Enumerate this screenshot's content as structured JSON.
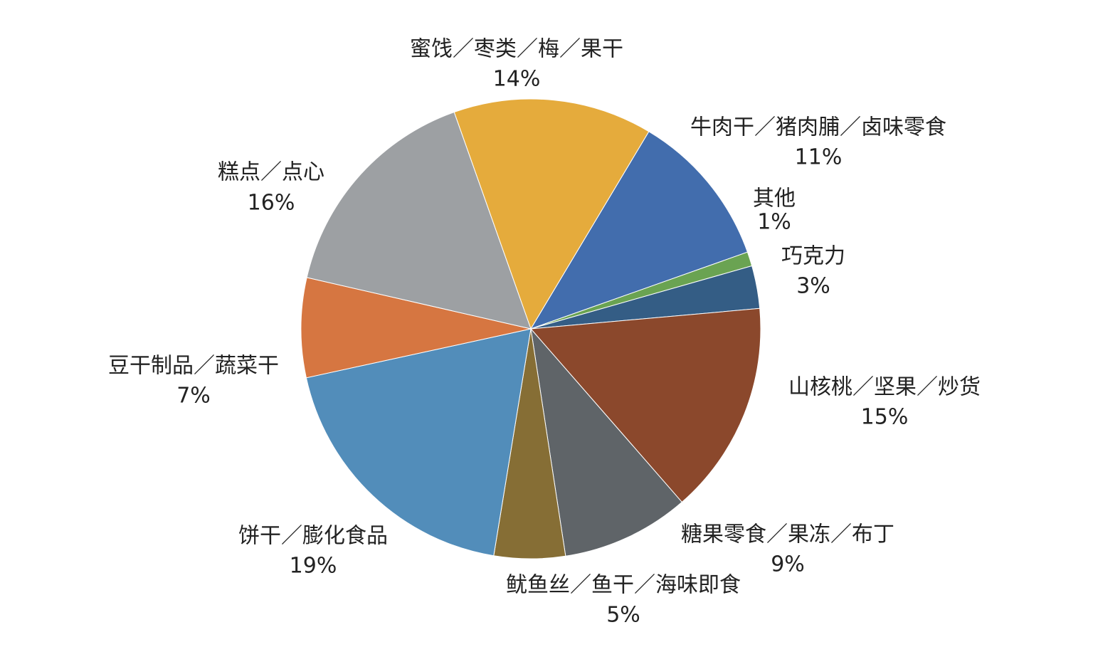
{
  "chart_data": {
    "type": "pie",
    "title": "",
    "start_angle_deg": 109.5,
    "direction": "clockwise",
    "slices": [
      {
        "label": "蜜饯／枣类／梅／果干",
        "value": 14,
        "value_label": "14%",
        "color": "#E5AB3C"
      },
      {
        "label": "牛肉干／猪肉脯／卤味零食",
        "value": 11,
        "value_label": "11%",
        "color": "#426DAD"
      },
      {
        "label": "其他",
        "value": 1,
        "value_label": "1%",
        "color": "#6AA352"
      },
      {
        "label": "巧克力",
        "value": 3,
        "value_label": "3%",
        "color": "#345D85"
      },
      {
        "label": "山核桃／坚果／炒货",
        "value": 15,
        "value_label": "15%",
        "color": "#8B482C"
      },
      {
        "label": "糖果零食／果冻／布丁",
        "value": 9,
        "value_label": "9%",
        "color": "#5F6468"
      },
      {
        "label": "鱿鱼丝／鱼干／海味即食",
        "value": 5,
        "value_label": "5%",
        "color": "#866E35"
      },
      {
        "label": "饼干／膨化食品",
        "value": 19,
        "value_label": "19%",
        "color": "#528DBA"
      },
      {
        "label": "豆干制品／蔬菜干",
        "value": 7,
        "value_label": "7%",
        "color": "#D67641"
      },
      {
        "label": "糕点／点心",
        "value": 16,
        "value_label": "16%",
        "color": "#9DA0A3"
      }
    ]
  }
}
